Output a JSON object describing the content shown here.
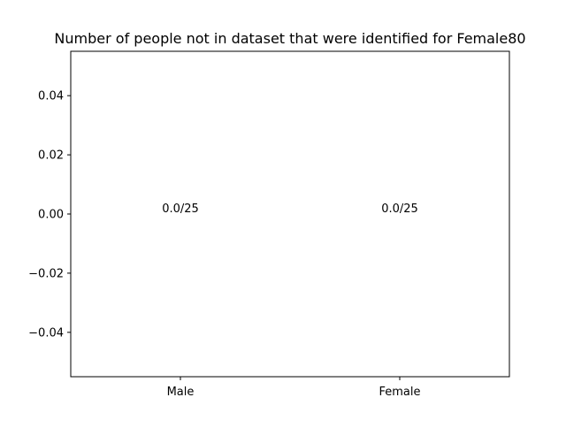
{
  "chart_data": {
    "type": "bar",
    "title": "Number of people not in dataset that were identified for Female80",
    "xlabel": "",
    "ylabel": "",
    "categories": [
      "Male",
      "Female"
    ],
    "values": [
      0.0,
      0.0
    ],
    "data_labels": [
      "0.0/25",
      "0.0/25"
    ],
    "ylim": [
      -0.055,
      0.055
    ],
    "yticks": [
      -0.04,
      -0.02,
      0.0,
      0.02,
      0.04
    ],
    "ytick_labels": [
      "−0.04",
      "−0.02",
      "0.00",
      "0.02",
      "0.04"
    ],
    "grid": false,
    "legend": "none",
    "colors": {
      "bar": "#1f77b4",
      "axis": "#000000",
      "text": "#000000"
    }
  }
}
